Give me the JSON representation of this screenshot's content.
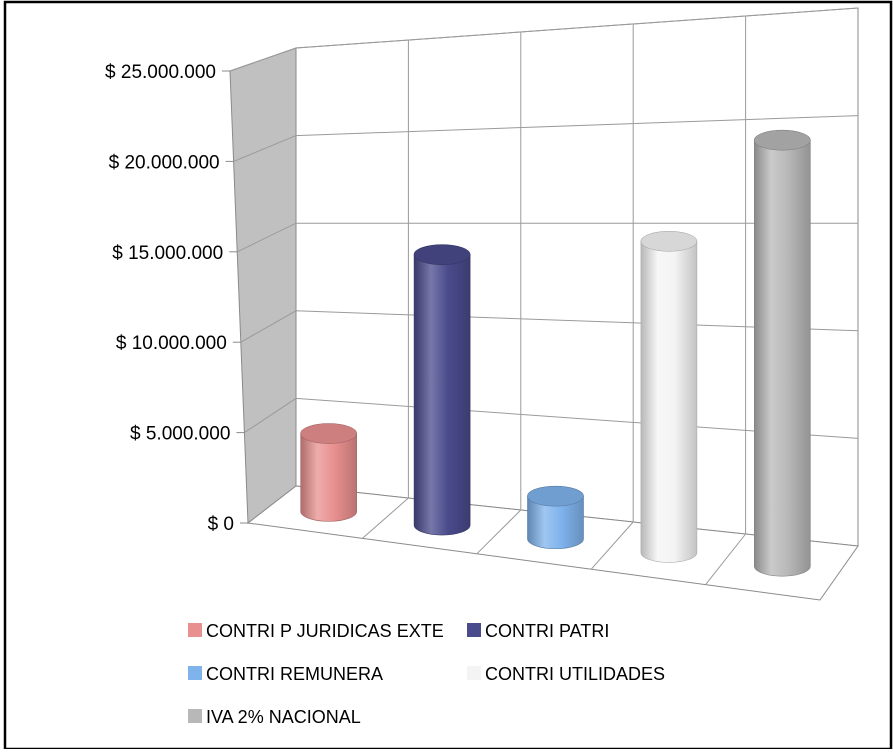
{
  "chart_data": {
    "type": "bar",
    "style": "3d-cylinder",
    "categories": [
      "CONTRI P JURIDICAS EXTE",
      "CONTRI PATRI",
      "CONTRI REMUNERA",
      "CONTRI UTILIDADES",
      "IVA 2% NACIONAL"
    ],
    "values": [
      4200000,
      14600000,
      2300000,
      16800000,
      23000000
    ],
    "ylim": [
      0,
      25000000
    ],
    "y_ticks": [
      0,
      5000000,
      10000000,
      15000000,
      20000000,
      25000000
    ],
    "y_tick_labels": [
      "$ 0",
      "$ 5.000.000",
      "$ 10.000.000",
      "$ 15.000.000",
      "$ 20.000.000",
      "$ 25.000.000"
    ],
    "grid": true,
    "legend": {
      "position": "bottom",
      "entries": [
        "CONTRI P JURIDICAS EXTE",
        "CONTRI PATRI",
        "CONTRI REMUNERA",
        "CONTRI UTILIDADES",
        "IVA 2% NACIONAL"
      ]
    },
    "colors": {
      "CONTRI P JURIDICAS EXTE": "#e8908f",
      "CONTRI PATRI": "#4a4b8c",
      "CONTRI REMUNERA": "#7fb3ec",
      "CONTRI UTILIDADES": "#f4f4f4",
      "IVA 2% NACIONAL": "#b8b8b8"
    },
    "wall_color": "#c0c0c0"
  }
}
